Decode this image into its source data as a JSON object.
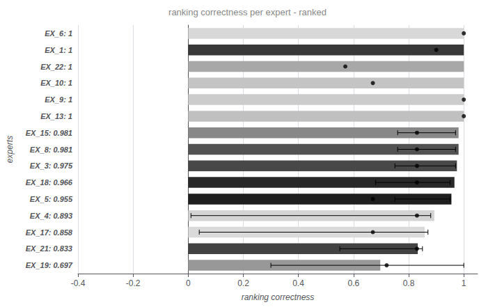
{
  "chart_data": {
    "type": "bar",
    "orientation": "horizontal",
    "title": "ranking correctness per expert - ranked",
    "xlabel": "ranking correctness",
    "ylabel": "experts",
    "categories": [
      "EX_6: 1",
      "EX_1: 1",
      "EX_22: 1",
      "EX_10: 1",
      "EX_9: 1",
      "EX_13: 1",
      "EX_15: 0.981",
      "EX_8: 0.981",
      "EX_3: 0.975",
      "EX_18: 0.966",
      "EX_5: 0.955",
      "EX_4: 0.893",
      "EX_17: 0.858",
      "EX_21: 0.833",
      "EX_19: 0.697"
    ],
    "values": [
      1.0,
      1.0,
      1.0,
      1.0,
      1.0,
      1.0,
      0.981,
      0.981,
      0.975,
      0.966,
      0.955,
      0.893,
      0.858,
      0.833,
      0.697
    ],
    "colors": [
      "#d8d8d8",
      "#383838",
      "#a8a8a8",
      "#c4c4c4",
      "#cccccc",
      "#c0c0c0",
      "#888888",
      "#525252",
      "#484848",
      "#282828",
      "#1e1e1e",
      "#d4d4d4",
      "#dadada",
      "#424242",
      "#989898"
    ],
    "error_bars": {
      "color": "#000000",
      "centers": [
        1.0,
        1.0,
        1.0,
        1.0,
        1.0,
        1.0,
        0.9,
        0.9,
        0.89,
        0.85,
        0.87,
        0.1,
        0.17,
        0.68,
        0.68
      ],
      "lower": [
        0.0,
        0.0,
        0.0,
        0.0,
        0.0,
        0.0,
        0.14,
        0.14,
        0.14,
        0.17,
        0.12,
        0.09,
        0.13,
        0.13,
        0.38
      ],
      "upper": [
        0.0,
        0.0,
        0.0,
        0.0,
        0.0,
        0.0,
        0.07,
        0.07,
        0.08,
        0.1,
        0.08,
        0.78,
        0.7,
        0.17,
        0.32
      ]
    },
    "completeness": {
      "color": "#000000",
      "marker": "circle",
      "values": [
        1.0,
        0.9,
        0.57,
        0.67,
        1.0,
        1.0,
        0.83,
        0.83,
        0.83,
        0.83,
        0.67,
        0.83,
        0.67,
        0.83,
        0.72
      ]
    },
    "xlim": [
      -0.4,
      1.05
    ],
    "xticks": [
      -0.4,
      -0.2,
      0,
      0.2,
      0.4,
      0.6,
      0.8,
      1
    ],
    "grid": true
  }
}
